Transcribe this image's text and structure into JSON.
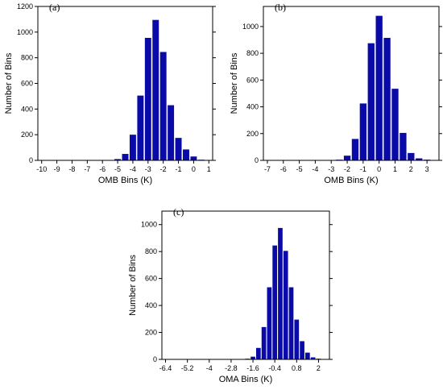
{
  "chart_data": [
    {
      "type": "bar",
      "panel_label": "(a)",
      "xlabel": "OMB Bins (K)",
      "ylabel": "Number of Bins",
      "xlim": [
        -10.25,
        1.25
      ],
      "ylim": [
        0,
        1200
      ],
      "xticks": [
        "-10",
        "-9",
        "-8",
        "-7",
        "-6",
        "-5",
        "-4",
        "-3",
        "-2",
        "-1",
        "0",
        "1"
      ],
      "xtick_values": [
        -10,
        -9,
        -8,
        -7,
        -6,
        -5,
        -4,
        -3,
        -2,
        -1,
        0,
        1
      ],
      "yticks": [
        "0",
        "200",
        "400",
        "600",
        "800",
        "1000",
        "1200"
      ],
      "ytick_values": [
        0,
        200,
        400,
        600,
        800,
        1000,
        1200
      ],
      "bin_width": 0.5,
      "x": [
        -10,
        -9.5,
        -9,
        -8.5,
        -8,
        -7.5,
        -7,
        -6.5,
        -6,
        -5.5,
        -5,
        -4.5,
        -4,
        -3.5,
        -3,
        -2.5,
        -2,
        -1.5,
        -1,
        -0.5,
        0,
        0.5
      ],
      "values": [
        0,
        0,
        0,
        0,
        0,
        0,
        0,
        0,
        0,
        0,
        10,
        50,
        200,
        505,
        955,
        1095,
        845,
        430,
        175,
        85,
        30,
        5
      ]
    },
    {
      "type": "bar",
      "panel_label": "(b)",
      "xlabel": "OMB Bins (K)",
      "ylabel": "Number of Bins",
      "xlim": [
        -7.25,
        3.75
      ],
      "ylim": [
        0,
        1150
      ],
      "xticks": [
        "-7",
        "-6",
        "-5",
        "-4",
        "-3",
        "-2",
        "-1",
        "0",
        "1",
        "2",
        "3"
      ],
      "xtick_values": [
        -7,
        -6,
        -5,
        -4,
        -3,
        -2,
        -1,
        0,
        1,
        2,
        3
      ],
      "yticks": [
        "0",
        "200",
        "400",
        "600",
        "800",
        "1000"
      ],
      "ytick_values": [
        0,
        200,
        400,
        600,
        800,
        1000
      ],
      "bin_width": 0.5,
      "x": [
        -7,
        -6.5,
        -6,
        -5.5,
        -5,
        -4.5,
        -4,
        -3.5,
        -3,
        -2.5,
        -2,
        -1.5,
        -1,
        -0.5,
        0,
        0.5,
        1,
        1.5,
        2,
        2.5,
        3,
        3.5
      ],
      "values": [
        0,
        0,
        0,
        0,
        0,
        0,
        0,
        0,
        0,
        5,
        35,
        160,
        425,
        875,
        1080,
        915,
        535,
        205,
        55,
        15,
        5,
        0
      ]
    },
    {
      "type": "bar",
      "panel_label": "(c)",
      "xlabel": "OMA Bins (K)",
      "ylabel": "Number of Bins",
      "xlim": [
        -6.6,
        2.6
      ],
      "ylim": [
        0,
        1100
      ],
      "xticks": [
        "-6.4",
        "-5.2",
        "-4",
        "-2.8",
        "-1.6",
        "-0.4",
        "0.8",
        "2"
      ],
      "xtick_values": [
        -6.4,
        -5.2,
        -4,
        -2.8,
        -1.6,
        -0.4,
        0.8,
        2
      ],
      "yticks": [
        "0",
        "200",
        "400",
        "600",
        "800",
        "1000"
      ],
      "ytick_values": [
        0,
        200,
        400,
        600,
        800,
        1000
      ],
      "bin_width": 0.3,
      "x": [
        -6.4,
        -6.1,
        -5.8,
        -5.5,
        -5.2,
        -4.9,
        -4.6,
        -4.3,
        -4,
        -3.7,
        -3.4,
        -3.1,
        -2.8,
        -2.5,
        -2.2,
        -1.9,
        -1.6,
        -1.3,
        -1,
        -0.7,
        -0.4,
        -0.1,
        0.2,
        0.5,
        0.8,
        1.1,
        1.4,
        1.7,
        2,
        2.3
      ],
      "values": [
        0,
        0,
        0,
        0,
        0,
        0,
        0,
        0,
        0,
        0,
        0,
        0,
        0,
        0,
        0,
        5,
        20,
        85,
        240,
        535,
        845,
        975,
        805,
        535,
        295,
        135,
        50,
        15,
        5,
        0
      ]
    }
  ]
}
